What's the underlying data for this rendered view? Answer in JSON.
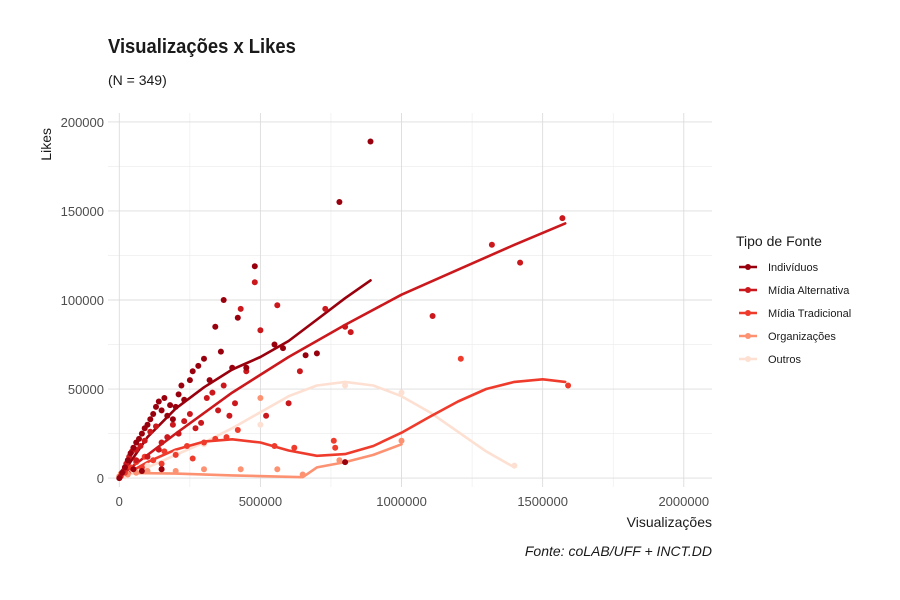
{
  "chart_data": {
    "type": "scatter",
    "title": "Visualizações x Likes",
    "subtitle": "(N = 349)",
    "caption": "Fonte: coLAB/UFF + INCT.DD",
    "xlabel": "Visualizações",
    "ylabel": "Likes",
    "xlim": [
      -40000,
      2100000
    ],
    "ylim": [
      -5000,
      205000
    ],
    "x_ticks": [
      0,
      500000,
      1000000,
      1500000,
      2000000
    ],
    "x_tick_labels": [
      "0",
      "500000",
      "1000000",
      "1500000",
      "2000000"
    ],
    "y_ticks": [
      0,
      50000,
      100000,
      150000,
      200000
    ],
    "y_tick_labels": [
      "0",
      "50000",
      "100000",
      "150000",
      "200000"
    ],
    "grid": true,
    "legend": {
      "title": "Tipo de Fonte",
      "position": "right"
    },
    "series": [
      {
        "name": "Indivíduos",
        "color": "#99000d",
        "points": [
          [
            0,
            0
          ],
          [
            10000,
            3000
          ],
          [
            20000,
            6000
          ],
          [
            30000,
            10000
          ],
          [
            40000,
            14000
          ],
          [
            50000,
            17000
          ],
          [
            60000,
            20000
          ],
          [
            70000,
            22000
          ],
          [
            80000,
            25000
          ],
          [
            90000,
            28000
          ],
          [
            100000,
            30000
          ],
          [
            110000,
            33000
          ],
          [
            120000,
            36000
          ],
          [
            130000,
            40000
          ],
          [
            140000,
            43000
          ],
          [
            150000,
            38000
          ],
          [
            160000,
            45000
          ],
          [
            170000,
            35000
          ],
          [
            180000,
            41000
          ],
          [
            190000,
            33000
          ],
          [
            200000,
            40000
          ],
          [
            210000,
            47000
          ],
          [
            220000,
            52000
          ],
          [
            230000,
            44000
          ],
          [
            250000,
            55000
          ],
          [
            260000,
            60000
          ],
          [
            280000,
            63000
          ],
          [
            300000,
            67000
          ],
          [
            320000,
            55000
          ],
          [
            340000,
            85000
          ],
          [
            360000,
            71000
          ],
          [
            370000,
            100000
          ],
          [
            400000,
            62000
          ],
          [
            420000,
            90000
          ],
          [
            450000,
            62000
          ],
          [
            480000,
            119000
          ],
          [
            550000,
            75000
          ],
          [
            580000,
            73000
          ],
          [
            660000,
            69000
          ],
          [
            700000,
            70000
          ],
          [
            780000,
            155000
          ],
          [
            800000,
            9000
          ],
          [
            890000,
            189000
          ],
          [
            50000,
            5000
          ],
          [
            80000,
            4000
          ],
          [
            150000,
            5000
          ]
        ],
        "trend": [
          [
            0,
            0
          ],
          [
            100000,
            23000
          ],
          [
            200000,
            39000
          ],
          [
            300000,
            51000
          ],
          [
            400000,
            61000
          ],
          [
            500000,
            68000
          ],
          [
            600000,
            77000
          ],
          [
            700000,
            89000
          ],
          [
            800000,
            101000
          ],
          [
            890000,
            111000
          ]
        ]
      },
      {
        "name": "Mídia Alternativa",
        "color": "#cb181d",
        "points": [
          [
            5000,
            1000
          ],
          [
            15000,
            4000
          ],
          [
            25000,
            8000
          ],
          [
            35000,
            12000
          ],
          [
            45000,
            15000
          ],
          [
            60000,
            16000
          ],
          [
            75000,
            18000
          ],
          [
            90000,
            21000
          ],
          [
            110000,
            26000
          ],
          [
            130000,
            29000
          ],
          [
            150000,
            20000
          ],
          [
            170000,
            23000
          ],
          [
            190000,
            30000
          ],
          [
            210000,
            25000
          ],
          [
            230000,
            32000
          ],
          [
            250000,
            36000
          ],
          [
            270000,
            28000
          ],
          [
            290000,
            31000
          ],
          [
            310000,
            45000
          ],
          [
            330000,
            48000
          ],
          [
            350000,
            38000
          ],
          [
            370000,
            52000
          ],
          [
            390000,
            35000
          ],
          [
            410000,
            42000
          ],
          [
            430000,
            95000
          ],
          [
            450000,
            60000
          ],
          [
            480000,
            110000
          ],
          [
            500000,
            83000
          ],
          [
            520000,
            35000
          ],
          [
            560000,
            97000
          ],
          [
            600000,
            42000
          ],
          [
            640000,
            60000
          ],
          [
            730000,
            95000
          ],
          [
            800000,
            85000
          ],
          [
            820000,
            82000
          ],
          [
            1110000,
            91000
          ],
          [
            1320000,
            131000
          ],
          [
            1420000,
            121000
          ],
          [
            1570000,
            146000
          ],
          [
            60000,
            10000
          ],
          [
            100000,
            12000
          ],
          [
            140000,
            16000
          ]
        ],
        "trend": [
          [
            0,
            1000
          ],
          [
            200000,
            25000
          ],
          [
            400000,
            48000
          ],
          [
            600000,
            68000
          ],
          [
            800000,
            86000
          ],
          [
            1000000,
            103000
          ],
          [
            1200000,
            117000
          ],
          [
            1400000,
            131000
          ],
          [
            1580000,
            143000
          ]
        ]
      },
      {
        "name": "Mídia Tradicional",
        "color": "#ef3b2c",
        "points": [
          [
            20000,
            3000
          ],
          [
            40000,
            6000
          ],
          [
            60000,
            9000
          ],
          [
            90000,
            12000
          ],
          [
            120000,
            10000
          ],
          [
            160000,
            15000
          ],
          [
            200000,
            13000
          ],
          [
            240000,
            18000
          ],
          [
            260000,
            11000
          ],
          [
            300000,
            20000
          ],
          [
            340000,
            22000
          ],
          [
            380000,
            23000
          ],
          [
            420000,
            27000
          ],
          [
            550000,
            18000
          ],
          [
            620000,
            17000
          ],
          [
            760000,
            21000
          ],
          [
            765000,
            17000
          ],
          [
            1210000,
            67000
          ],
          [
            1590000,
            52000
          ],
          [
            80000,
            6000
          ],
          [
            150000,
            8000
          ]
        ],
        "trend": [
          [
            0,
            0
          ],
          [
            100000,
            9000
          ],
          [
            200000,
            16000
          ],
          [
            300000,
            20500
          ],
          [
            400000,
            21800
          ],
          [
            500000,
            20000
          ],
          [
            600000,
            15500
          ],
          [
            700000,
            12500
          ],
          [
            800000,
            13500
          ],
          [
            900000,
            18000
          ],
          [
            1000000,
            25500
          ],
          [
            1100000,
            34500
          ],
          [
            1200000,
            43000
          ],
          [
            1300000,
            50000
          ],
          [
            1400000,
            54000
          ],
          [
            1500000,
            55500
          ],
          [
            1580000,
            54000
          ]
        ]
      },
      {
        "name": "Organizações",
        "color": "#fc9272",
        "points": [
          [
            0,
            1000
          ],
          [
            30000,
            2000
          ],
          [
            60000,
            3000
          ],
          [
            100000,
            4000
          ],
          [
            150000,
            5000
          ],
          [
            200000,
            4000
          ],
          [
            300000,
            5000
          ],
          [
            430000,
            5000
          ],
          [
            500000,
            45000
          ],
          [
            560000,
            5000
          ],
          [
            650000,
            2000
          ],
          [
            780000,
            10000
          ],
          [
            1000000,
            21000
          ]
        ],
        "trend": [
          [
            0,
            3000
          ],
          [
            200000,
            2500
          ],
          [
            400000,
            1500
          ],
          [
            650000,
            500
          ],
          [
            700000,
            6000
          ],
          [
            800000,
            9000
          ],
          [
            900000,
            13000
          ],
          [
            1000000,
            19000
          ]
        ]
      },
      {
        "name": "Outros",
        "color": "#fee0d2",
        "points": [
          [
            0,
            0
          ],
          [
            20000,
            1000
          ],
          [
            50000,
            4000
          ],
          [
            100000,
            7000
          ],
          [
            200000,
            14000
          ],
          [
            300000,
            19000
          ],
          [
            500000,
            30000
          ],
          [
            800000,
            52000
          ],
          [
            1000000,
            48000
          ],
          [
            1400000,
            7000
          ]
        ],
        "trend": [
          [
            0,
            1000
          ],
          [
            100000,
            6000
          ],
          [
            200000,
            13000
          ],
          [
            300000,
            20000
          ],
          [
            400000,
            28000
          ],
          [
            500000,
            37000
          ],
          [
            600000,
            46000
          ],
          [
            700000,
            52000
          ],
          [
            800000,
            54000
          ],
          [
            900000,
            52000
          ],
          [
            1000000,
            46000
          ],
          [
            1100000,
            37000
          ],
          [
            1200000,
            26000
          ],
          [
            1300000,
            15000
          ],
          [
            1400000,
            6000
          ]
        ]
      }
    ]
  }
}
